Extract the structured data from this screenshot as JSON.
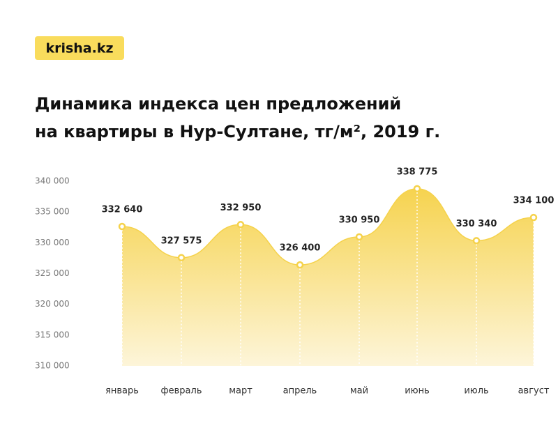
{
  "brand": "krisha.kz",
  "chart_data": {
    "type": "area",
    "title": [
      "Динамика индекса цен предложений",
      "на квартиры в Нур-Султане, тг/м², 2019 г."
    ],
    "categories": [
      "январь",
      "февраль",
      "март",
      "апрель",
      "май",
      "июнь",
      "июль",
      "август"
    ],
    "values": [
      332640,
      327575,
      332950,
      326400,
      330950,
      338775,
      330340,
      334100
    ],
    "value_labels": [
      "332 640",
      "327 575",
      "332 950",
      "326 400",
      "330 950",
      "338 775",
      "330 340",
      "334 100"
    ],
    "color": "#f5d24b",
    "ylim": [
      310000,
      340000
    ],
    "yticks": [
      {
        "value": 310000,
        "label": "310 000"
      },
      {
        "value": 315000,
        "label": "315 000"
      },
      {
        "value": 320000,
        "label": "320 000"
      },
      {
        "value": 325000,
        "label": "325 000"
      },
      {
        "value": 330000,
        "label": "330 000"
      },
      {
        "value": 335000,
        "label": "335 000"
      },
      {
        "value": 340000,
        "label": "340 000"
      }
    ],
    "grid": false
  }
}
